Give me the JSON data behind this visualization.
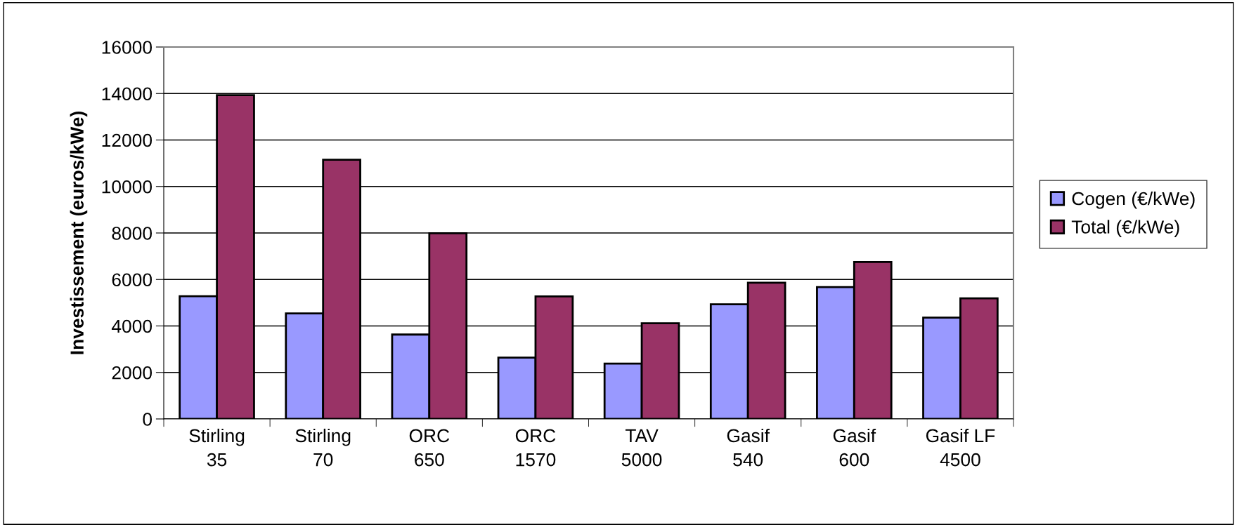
{
  "chart_data": {
    "type": "bar",
    "ylabel": "Investissement (euros/kWe)",
    "categories": [
      "Stirling\n35",
      "Stirling\n70",
      "ORC\n650",
      "ORC\n1570",
      "TAV\n5000",
      "Gasif\n540",
      "Gasif\n600",
      "Gasif LF\n4500"
    ],
    "series": [
      {
        "name": "Cogen (€/kWe)",
        "color": "#9999ff",
        "values": [
          5280,
          4540,
          3630,
          2640,
          2380,
          4930,
          5670,
          4360
        ]
      },
      {
        "name": "Total (€/kWe)",
        "color": "#993366",
        "values": [
          13930,
          11150,
          7990,
          5270,
          4120,
          5860,
          6750,
          5190
        ]
      }
    ],
    "ylim": [
      0,
      16000
    ],
    "yticks": [
      0,
      2000,
      4000,
      6000,
      8000,
      10000,
      12000,
      14000,
      16000
    ],
    "grid": "y",
    "legend": "right"
  }
}
